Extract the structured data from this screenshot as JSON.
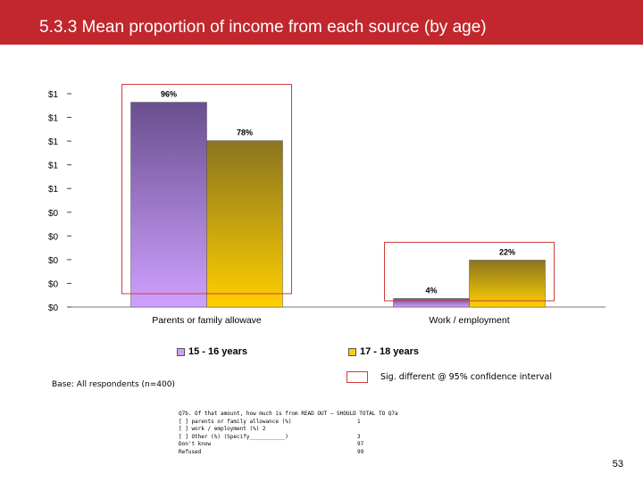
{
  "header": {
    "title": "5.3.3 Mean proportion of income from each source (by age)",
    "bg_color": "#c1272d"
  },
  "chart_data": {
    "type": "bar",
    "categories": [
      "Parents or family allowave",
      "Work / employment"
    ],
    "series": [
      {
        "name": "15 - 16 years",
        "values": [
          96,
          4
        ],
        "color_top": "#6a4f8f",
        "color_bottom": "#cfa0ff"
      },
      {
        "name": "17 - 18 years",
        "values": [
          78,
          22
        ],
        "color_top": "#8a7420",
        "color_bottom": "#ffd000"
      }
    ],
    "data_labels": [
      [
        "96%",
        "4%"
      ],
      [
        "78%",
        "22%"
      ]
    ],
    "y_tick_labels": [
      "$0",
      "$0",
      "$0",
      "$0",
      "$0",
      "$1",
      "$1",
      "$1",
      "$1",
      "$1"
    ],
    "ylim": [
      0,
      100
    ],
    "legend_position": "bottom",
    "highlight_color": "#d23b3b"
  },
  "footer": {
    "base": "Base: All respondents (n=400)",
    "sig_note": "Sig. different @ 95% confidence interval",
    "question_lines": [
      {
        "text": "Q7b. Of that amount, how much is from READ OUT – SHOULD TOTAL TO Q7a",
        "code": ""
      },
      {
        "text": "[             ] parents or family allowance (%)",
        "code": "1"
      },
      {
        "text": "[             ] work / employment (%)    2",
        "code": ""
      },
      {
        "text": "[             ] Other (%) (Specify___________)",
        "code": "3"
      },
      {
        "text": "Don't know",
        "code": "97"
      },
      {
        "text": "Refused",
        "code": "99"
      }
    ],
    "page_number": "53"
  }
}
